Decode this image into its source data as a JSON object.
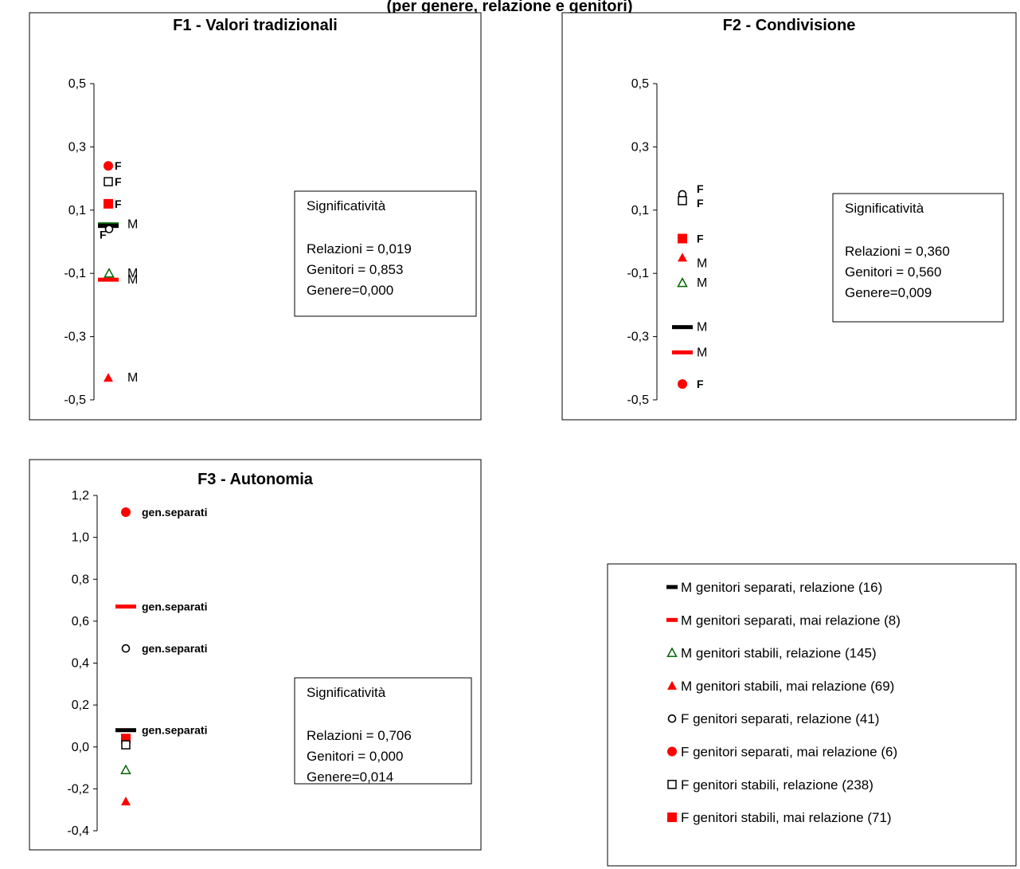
{
  "page_title_fragment": "(per genere, relazione e genitori)",
  "colors": {
    "red": "#ff0000",
    "black": "#000000",
    "green": "#006400"
  },
  "legend": [
    {
      "marker": "dash",
      "color": "#000000",
      "label": "M genitori separati, relazione (16)"
    },
    {
      "marker": "dash",
      "color": "#ff0000",
      "label": "M genitori separati, mai relazione (8)"
    },
    {
      "marker": "triangle-open",
      "color": "#006400",
      "label": "M genitori stabili, relazione (145)"
    },
    {
      "marker": "triangle-filled",
      "color": "#ff0000",
      "label": "M genitori stabili, mai relazione (69)"
    },
    {
      "marker": "circle-open",
      "color": "#000000",
      "label": "F genitori separati, relazione (41)"
    },
    {
      "marker": "circle-filled",
      "color": "#ff0000",
      "label": "F genitori separati, mai relazione (6)"
    },
    {
      "marker": "square-open",
      "color": "#000000",
      "label": "F genitori stabili, relazione (238)"
    },
    {
      "marker": "square-filled",
      "color": "#ff0000",
      "label": "F genitori stabili, mai relazione (71)"
    }
  ],
  "chart_data": [
    {
      "type": "scatter",
      "title": "F1 -  Valori tradizionali",
      "yticks": [
        "0,5",
        "0,3",
        "0,1",
        "-0,1",
        "-0,3",
        "-0,5"
      ],
      "ylim": [
        -0.5,
        0.5
      ],
      "significance": {
        "title": "Significatività",
        "lines": [
          "Relazioni = 0,019",
          "Genitori = 0,853",
          "Genere=0,000"
        ]
      },
      "points": [
        {
          "marker": "circle-filled",
          "color": "#ff0000",
          "y": 0.24,
          "label": "F"
        },
        {
          "marker": "square-open",
          "color": "#000000",
          "y": 0.19,
          "label": "F"
        },
        {
          "marker": "square-filled",
          "color": "#ff0000",
          "y": 0.12,
          "label": "F"
        },
        {
          "marker": "dash",
          "color": "#006400",
          "y": 0.055,
          "label": "M"
        },
        {
          "marker": "dash",
          "color": "#000000",
          "y": 0.05,
          "label": ""
        },
        {
          "marker": "circle-open",
          "color": "#000000",
          "y": 0.04,
          "label": "F"
        },
        {
          "marker": "triangle-open",
          "color": "#006400",
          "y": -0.1,
          "label": "M"
        },
        {
          "marker": "dash",
          "color": "#ff0000",
          "y": -0.12,
          "label": "M"
        },
        {
          "marker": "triangle-filled",
          "color": "#ff0000",
          "y": -0.43,
          "label": "M"
        }
      ]
    },
    {
      "type": "scatter",
      "title": "F2 - Condivisione",
      "yticks": [
        "0,5",
        "0,3",
        "0,1",
        "-0,1",
        "-0,3",
        "-0,5"
      ],
      "ylim": [
        -0.5,
        0.5
      ],
      "significance": {
        "title": "Significatività",
        "lines": [
          "Relazioni = 0,360",
          "Genitori = 0,560",
          "Genere=0,009"
        ]
      },
      "points": [
        {
          "marker": "circle-open",
          "color": "#000000",
          "y": 0.15,
          "label": "F"
        },
        {
          "marker": "square-open",
          "color": "#000000",
          "y": 0.13,
          "label": "F"
        },
        {
          "marker": "square-filled",
          "color": "#ff0000",
          "y": 0.01,
          "label": "F"
        },
        {
          "marker": "triangle-filled",
          "color": "#ff0000",
          "y": -0.05,
          "label": "M"
        },
        {
          "marker": "triangle-open",
          "color": "#006400",
          "y": -0.13,
          "label": "M"
        },
        {
          "marker": "dash",
          "color": "#000000",
          "y": -0.27,
          "label": "M"
        },
        {
          "marker": "dash",
          "color": "#ff0000",
          "y": -0.35,
          "label": "M"
        },
        {
          "marker": "circle-filled",
          "color": "#ff0000",
          "y": -0.45,
          "label": "F"
        }
      ]
    },
    {
      "type": "scatter",
      "title": "F3 - Autonomia",
      "yticks": [
        "1,2",
        "1,0",
        "0,8",
        "0,6",
        "0,4",
        "0,2",
        "0,0",
        "-0,2",
        "-0,4"
      ],
      "ylim": [
        -0.4,
        1.2
      ],
      "significance": {
        "title": "Significatività",
        "lines": [
          "Relazioni = 0,706",
          "Genitori = 0,000",
          "Genere=0,014"
        ]
      },
      "points": [
        {
          "marker": "circle-filled",
          "color": "#ff0000",
          "y": 1.12,
          "label": "gen.separati"
        },
        {
          "marker": "dash",
          "color": "#ff0000",
          "y": 0.67,
          "label": "gen.separati"
        },
        {
          "marker": "circle-open",
          "color": "#000000",
          "y": 0.47,
          "label": "gen.separati"
        },
        {
          "marker": "dash",
          "color": "#000000",
          "y": 0.08,
          "label": "gen.separati"
        },
        {
          "marker": "square-filled",
          "color": "#ff0000",
          "y": 0.04,
          "label": ""
        },
        {
          "marker": "square-open",
          "color": "#000000",
          "y": 0.01,
          "label": ""
        },
        {
          "marker": "triangle-open",
          "color": "#006400",
          "y": -0.11,
          "label": ""
        },
        {
          "marker": "triangle-filled",
          "color": "#ff0000",
          "y": -0.26,
          "label": ""
        }
      ]
    }
  ]
}
